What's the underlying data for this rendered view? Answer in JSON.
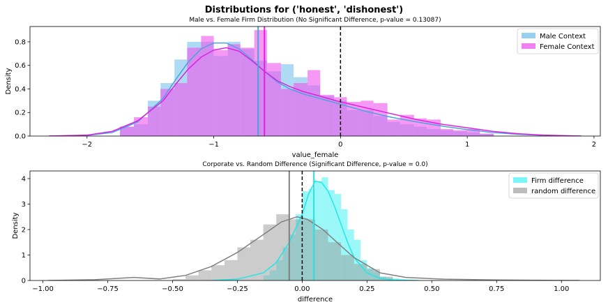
{
  "figure": {
    "suptitle": "Distributions for ('honest', 'dishonest')"
  },
  "chart_data": [
    {
      "type": "histogram-kde",
      "title": "Male vs. Female Firm Distribution (No Significant Difference, p-value = 0.13087)",
      "xlabel": "value_female",
      "ylabel": "Density",
      "xlim": [
        -2.45,
        2.05
      ],
      "ylim": [
        0,
        0.93
      ],
      "xticks": [
        -2,
        -1,
        0,
        1,
        2
      ],
      "xtick_labels": [
        "−2",
        "−1",
        "0",
        "1",
        "2"
      ],
      "yticks": [
        0.0,
        0.2,
        0.4,
        0.6,
        0.8
      ],
      "ytick_labels": [
        "0.0",
        "0.2",
        "0.4",
        "0.6",
        "0.8"
      ],
      "grid": false,
      "legend_placement": "upper right",
      "bin_edges": [
        -1.74,
        -1.63,
        -1.52,
        -1.42,
        -1.31,
        -1.21,
        -1.1,
        -1.0,
        -0.89,
        -0.79,
        -0.68,
        -0.58,
        -0.47,
        -0.37,
        -0.26,
        -0.16,
        -0.05,
        0.05,
        0.16,
        0.26,
        0.37,
        0.47,
        0.58,
        0.68,
        0.79,
        0.89,
        1.0,
        1.1,
        1.21
      ],
      "series": [
        {
          "name": "Male Context",
          "color": "#5fb5e8",
          "bar_opacity": 0.5,
          "values": [
            0.08,
            0.1,
            0.3,
            0.45,
            0.65,
            0.8,
            0.8,
            0.68,
            0.8,
            0.74,
            0.64,
            0.55,
            0.61,
            0.5,
            0.43,
            0.34,
            0.3,
            0.22,
            0.22,
            0.17,
            0.12,
            0.1,
            0.08,
            0.06,
            0.05,
            0.04,
            0.03,
            0.02
          ],
          "kde": [
            [
              -2.3,
              0.0
            ],
            [
              -2.0,
              0.005
            ],
            [
              -1.8,
              0.03
            ],
            [
              -1.6,
              0.12
            ],
            [
              -1.4,
              0.32
            ],
            [
              -1.3,
              0.48
            ],
            [
              -1.2,
              0.63
            ],
            [
              -1.1,
              0.74
            ],
            [
              -1.0,
              0.79
            ],
            [
              -0.9,
              0.79
            ],
            [
              -0.8,
              0.74
            ],
            [
              -0.7,
              0.65
            ],
            [
              -0.6,
              0.55
            ],
            [
              -0.5,
              0.46
            ],
            [
              -0.4,
              0.4
            ],
            [
              -0.3,
              0.36
            ],
            [
              -0.2,
              0.33
            ],
            [
              -0.1,
              0.3
            ],
            [
              0.0,
              0.27
            ],
            [
              0.2,
              0.21
            ],
            [
              0.4,
              0.16
            ],
            [
              0.6,
              0.12
            ],
            [
              0.8,
              0.085
            ],
            [
              1.0,
              0.055
            ],
            [
              1.2,
              0.03
            ],
            [
              1.4,
              0.015
            ],
            [
              1.6,
              0.006
            ],
            [
              1.9,
              0.0
            ]
          ],
          "mean_line": -0.65,
          "mean_line_color": "#4aa3df"
        },
        {
          "name": "Female Context",
          "color": "#ee55ee",
          "bar_opacity": 0.6,
          "values": [
            0.08,
            0.16,
            0.25,
            0.4,
            0.45,
            0.75,
            0.85,
            0.73,
            0.78,
            0.75,
            0.9,
            0.62,
            0.4,
            0.45,
            0.56,
            0.35,
            0.33,
            0.29,
            0.3,
            0.28,
            0.14,
            0.18,
            0.15,
            0.14,
            0.06,
            0.05,
            0.06,
            0.02
          ],
          "kde": [
            [
              -2.3,
              0.0
            ],
            [
              -2.0,
              0.008
            ],
            [
              -1.8,
              0.04
            ],
            [
              -1.6,
              0.13
            ],
            [
              -1.4,
              0.3
            ],
            [
              -1.3,
              0.44
            ],
            [
              -1.2,
              0.57
            ],
            [
              -1.1,
              0.67
            ],
            [
              -1.0,
              0.73
            ],
            [
              -0.9,
              0.75
            ],
            [
              -0.8,
              0.72
            ],
            [
              -0.7,
              0.64
            ],
            [
              -0.6,
              0.55
            ],
            [
              -0.5,
              0.47
            ],
            [
              -0.4,
              0.42
            ],
            [
              -0.3,
              0.38
            ],
            [
              -0.2,
              0.35
            ],
            [
              -0.1,
              0.32
            ],
            [
              0.0,
              0.29
            ],
            [
              0.2,
              0.24
            ],
            [
              0.4,
              0.19
            ],
            [
              0.6,
              0.14
            ],
            [
              0.8,
              0.1
            ],
            [
              1.0,
              0.07
            ],
            [
              1.2,
              0.04
            ],
            [
              1.4,
              0.02
            ],
            [
              1.6,
              0.008
            ],
            [
              1.9,
              0.0
            ]
          ],
          "mean_line": -0.6,
          "mean_line_color": "#dd22dd"
        }
      ],
      "reference_line": {
        "x": 0,
        "style": "dashed",
        "color": "#000000"
      }
    },
    {
      "type": "histogram-kde",
      "title": "Corporate vs. Random Difference (Significant Difference, p-value = 0.0)",
      "xlabel": "difference",
      "ylabel": "Density",
      "xlim": [
        -1.05,
        1.15
      ],
      "ylim": [
        0,
        4.3
      ],
      "xticks": [
        -1.0,
        -0.75,
        -0.5,
        -0.25,
        0.0,
        0.25,
        0.5,
        0.75,
        1.0
      ],
      "xtick_labels": [
        "−1.00",
        "−0.75",
        "−0.50",
        "−0.25",
        "0.00",
        "0.25",
        "0.50",
        "0.75",
        "1.00"
      ],
      "yticks": [
        0,
        1,
        2,
        3,
        4
      ],
      "ytick_labels": [
        "0",
        "1",
        "2",
        "3",
        "4"
      ],
      "grid": false,
      "legend_placement": "upper right",
      "series": [
        {
          "name": "Firm difference",
          "color": "#22f0f0",
          "bar_opacity": 0.45,
          "bin_edges": [
            -0.15,
            -0.125,
            -0.1,
            -0.075,
            -0.05,
            -0.025,
            0.0,
            0.025,
            0.05,
            0.075,
            0.1,
            0.125,
            0.15,
            0.175,
            0.2,
            0.225,
            0.25,
            0.275,
            0.3,
            0.325,
            0.35,
            0.375,
            0.4,
            0.425
          ],
          "values": [
            0.2,
            0.4,
            0.8,
            1.3,
            1.8,
            2.6,
            3.5,
            3.6,
            3.9,
            4.05,
            3.55,
            3.4,
            2.8,
            2.0,
            1.6,
            0.8,
            0.5,
            0.35,
            0.15,
            0.1,
            0.08,
            0.05,
            0.03
          ],
          "kde": [
            [
              -0.35,
              0.0
            ],
            [
              -0.25,
              0.05
            ],
            [
              -0.15,
              0.3
            ],
            [
              -0.1,
              0.7
            ],
            [
              -0.05,
              1.5
            ],
            [
              0.0,
              2.6
            ],
            [
              0.025,
              3.4
            ],
            [
              0.05,
              3.9
            ],
            [
              0.075,
              3.85
            ],
            [
              0.1,
              3.5
            ],
            [
              0.125,
              2.9
            ],
            [
              0.15,
              2.2
            ],
            [
              0.175,
              1.5
            ],
            [
              0.2,
              0.9
            ],
            [
              0.25,
              0.3
            ],
            [
              0.3,
              0.08
            ],
            [
              0.35,
              0.02
            ],
            [
              0.45,
              0.0
            ]
          ],
          "mean_line": 0.045,
          "mean_line_color": "#22e6e6"
        },
        {
          "name": "random difference",
          "color": "#9a9a9a",
          "bar_opacity": 0.5,
          "bin_edges": [
            -0.5,
            -0.45,
            -0.4,
            -0.35,
            -0.3,
            -0.25,
            -0.2,
            -0.15,
            -0.1,
            -0.05,
            0.0,
            0.05,
            0.1,
            0.15,
            0.2,
            0.25,
            0.3,
            0.35
          ],
          "values": [
            0.05,
            0.2,
            0.4,
            0.6,
            0.8,
            1.3,
            1.6,
            2.2,
            2.6,
            2.4,
            2.4,
            2.0,
            1.5,
            1.0,
            0.65,
            0.45,
            0.15
          ],
          "kde": [
            [
              -0.98,
              0.0
            ],
            [
              -0.8,
              0.03
            ],
            [
              -0.65,
              0.12
            ],
            [
              -0.55,
              0.06
            ],
            [
              -0.45,
              0.2
            ],
            [
              -0.35,
              0.55
            ],
            [
              -0.25,
              1.1
            ],
            [
              -0.15,
              1.8
            ],
            [
              -0.08,
              2.3
            ],
            [
              -0.02,
              2.5
            ],
            [
              0.02,
              2.4
            ],
            [
              0.08,
              2.0
            ],
            [
              0.15,
              1.35
            ],
            [
              0.2,
              0.9
            ],
            [
              0.3,
              0.3
            ],
            [
              0.4,
              0.12
            ],
            [
              0.55,
              0.05
            ],
            [
              0.75,
              0.02
            ],
            [
              1.07,
              0.0
            ]
          ],
          "mean_line": -0.05,
          "mean_line_color": "#808080"
        }
      ],
      "reference_line": {
        "x": 0,
        "style": "dashed",
        "color": "#000000"
      }
    }
  ]
}
